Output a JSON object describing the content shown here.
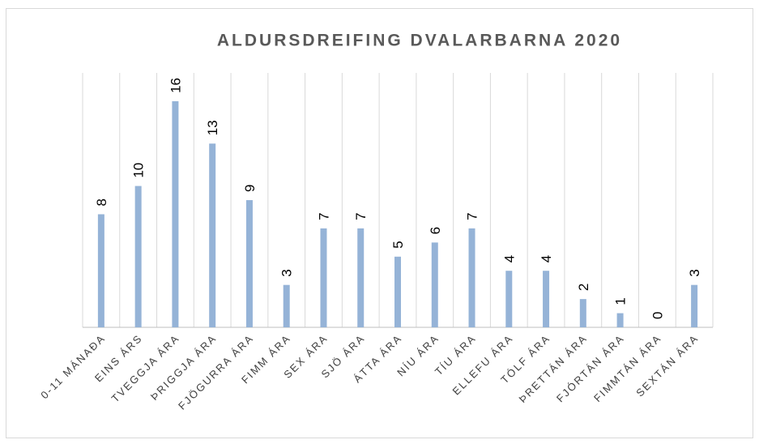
{
  "chart_data": {
    "type": "bar",
    "title": "ALDURSDREIFING DVALARBARNA 2020",
    "categories": [
      "0-11 MÁNAÐA",
      "EINS ÁRS",
      "TVEGGJA ÁRA",
      "ÞRIGGJA ÁRA",
      "FJÖGURRA ÁRA",
      "FIMM ÁRA",
      "SEX ÁRA",
      "SJÖ ÁRA",
      "ÁTTA ÁRA",
      "NÍU ÁRA",
      "TÍU ÁRA",
      "ELLEFU ÁRA",
      "TÓLF ÁRA",
      "ÞRETTÁN ÁRA",
      "FJÓRTÁN ÁRA",
      "FIMMTÁN ÁRA",
      "SEXTÁN ÁRA"
    ],
    "values": [
      8,
      10,
      16,
      13,
      9,
      3,
      7,
      7,
      5,
      6,
      7,
      4,
      4,
      2,
      1,
      0,
      3
    ],
    "color": "#95b3d7",
    "ylim": [
      0,
      18
    ],
    "grid": true
  }
}
